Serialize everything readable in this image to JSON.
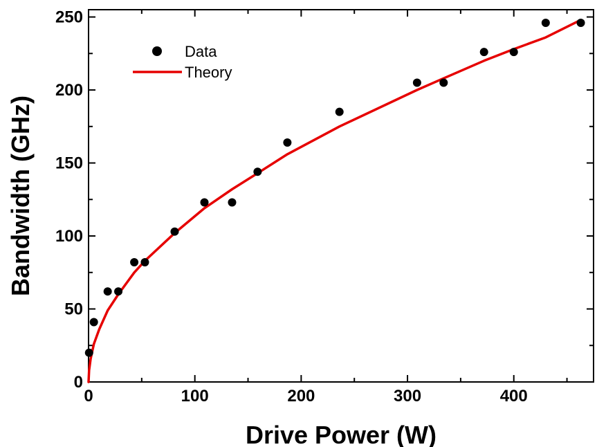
{
  "chart_data": {
    "type": "scatter",
    "xlabel": "Drive Power (W)",
    "ylabel": "Bandwidth (GHz)",
    "xlim": [
      0,
      475
    ],
    "ylim": [
      0,
      255
    ],
    "xticks": [
      0,
      100,
      200,
      300,
      400
    ],
    "yticks": [
      0,
      50,
      100,
      150,
      200,
      250
    ],
    "xtick_labels": [
      "0",
      "100",
      "200",
      "300",
      "400"
    ],
    "ytick_labels": [
      "0",
      "50",
      "100",
      "150",
      "200",
      "250"
    ],
    "grid": false,
    "legend_position": "top-left",
    "series": [
      {
        "name": "Data",
        "kind": "scatter",
        "color": "#000000",
        "x": [
          0.5,
          5,
          18,
          28,
          43,
          53,
          81,
          109,
          135,
          159,
          187,
          236,
          309,
          334,
          372,
          400,
          430,
          463
        ],
        "y": [
          20,
          41,
          62,
          62,
          82,
          82,
          103,
          123,
          123,
          144,
          164,
          185,
          205,
          205,
          226,
          226,
          246,
          246
        ]
      },
      {
        "name": "Theory",
        "kind": "line",
        "color": "#e60000",
        "x": [
          0,
          0.5,
          2,
          5,
          10,
          18,
          28,
          43,
          53,
          81,
          109,
          135,
          159,
          187,
          236,
          309,
          334,
          372,
          400,
          430,
          463
        ],
        "y": [
          0,
          8,
          16,
          26,
          36,
          49,
          60,
          75,
          83,
          102,
          119,
          132,
          143,
          156,
          175,
          200,
          208,
          220,
          228,
          236,
          248
        ]
      }
    ]
  }
}
